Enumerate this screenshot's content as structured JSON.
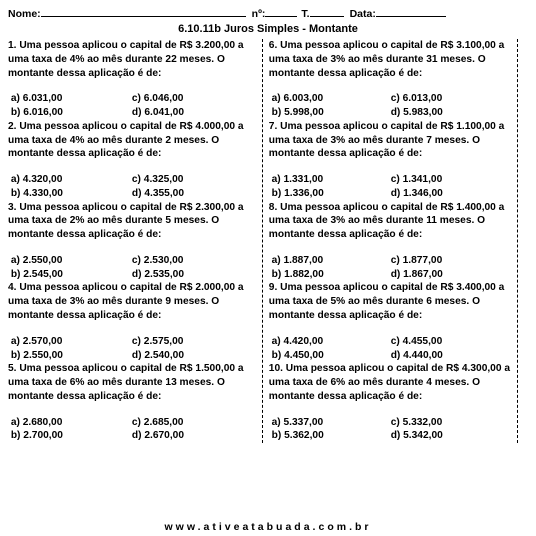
{
  "header": {
    "nome_label": "Nome:",
    "n_label": "nº:",
    "t_label": "T.",
    "data_label": "Data:"
  },
  "title": "6.10.11b Juros Simples - Montante",
  "template": {
    "pre": ". Uma pessoa aplicou o capital de R$ ",
    "mid1": " a uma taxa de ",
    "mid2": " ao mês durante ",
    "post": " meses. O montante dessa aplicação é de:"
  },
  "questions_left": [
    {
      "n": "1",
      "capital": "3.200,00",
      "taxa": "4%",
      "meses": "22",
      "a": "6.031,00",
      "b": "6.016,00",
      "c": "6.046,00",
      "d": "6.041,00"
    },
    {
      "n": "2",
      "capital": "4.000,00",
      "taxa": "4%",
      "meses": "2",
      "a": "4.320,00",
      "b": "4.330,00",
      "c": "4.325,00",
      "d": "4.355,00"
    },
    {
      "n": "3",
      "capital": "2.300,00",
      "taxa": "2%",
      "meses": "5",
      "a": "2.550,00",
      "b": "2.545,00",
      "c": "2.530,00",
      "d": "2.535,00"
    },
    {
      "n": "4",
      "capital": "2.000,00",
      "taxa": "3%",
      "meses": "9",
      "a": "2.570,00",
      "b": "2.550,00",
      "c": "2.575,00",
      "d": "2.540,00"
    },
    {
      "n": "5",
      "capital": "1.500,00",
      "taxa": "6%",
      "meses": "13",
      "a": "2.680,00",
      "b": "2.700,00",
      "c": "2.685,00",
      "d": "2.670,00"
    }
  ],
  "questions_right": [
    {
      "n": "6",
      "capital": "3.100,00",
      "taxa": "3%",
      "meses": "31",
      "a": "6.003,00",
      "b": "5.998,00",
      "c": "6.013,00",
      "d": "5.983,00"
    },
    {
      "n": "7",
      "capital": "1.100,00",
      "taxa": "3%",
      "meses": "7",
      "a": "1.331,00",
      "b": "1.336,00",
      "c": "1.341,00",
      "d": "1.346,00"
    },
    {
      "n": "8",
      "capital": "1.400,00",
      "taxa": "3%",
      "meses": "11",
      "a": "1.887,00",
      "b": "1.882,00",
      "c": "1.877,00",
      "d": "1.867,00"
    },
    {
      "n": "9",
      "capital": "3.400,00",
      "taxa": "5%",
      "meses": "6",
      "a": "4.420,00",
      "b": "4.450,00",
      "c": "4.455,00",
      "d": "4.440,00"
    },
    {
      "n": "10",
      "capital": "4.300,00",
      "taxa": "6%",
      "meses": "4",
      "a": "5.337,00",
      "b": "5.362,00",
      "c": "5.332,00",
      "d": "5.342,00"
    }
  ],
  "footer": "www.ativeatabuada.com.br"
}
